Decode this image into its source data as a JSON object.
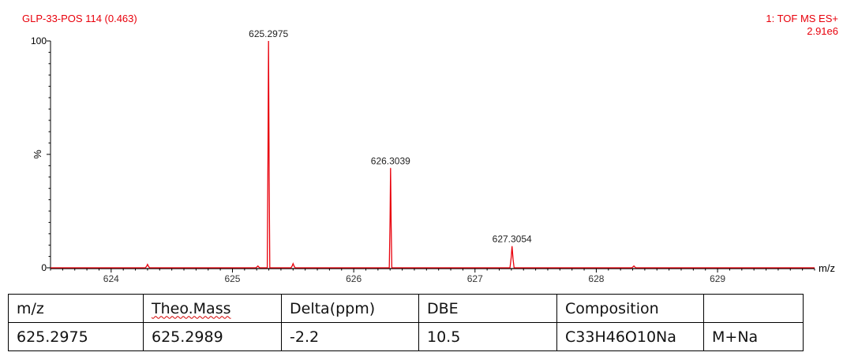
{
  "spectrum": {
    "sample_label": "GLP-33-POS 114 (0.463)",
    "instrument_label": "1: TOF MS ES+",
    "intensity_label": "2.91e6"
  },
  "chart_data": {
    "type": "line",
    "xlabel": "m/z",
    "ylabel": "%",
    "xlim": [
      623.5,
      629.8
    ],
    "ylim": [
      0,
      100
    ],
    "x_ticks": [
      624,
      625,
      626,
      627,
      628,
      629
    ],
    "y_ticks": [
      0,
      100
    ],
    "color": "#e8000b",
    "peaks": [
      {
        "mz": 624.3,
        "intensity": 1.5,
        "label": ""
      },
      {
        "mz": 625.21,
        "intensity": 0.8,
        "label": ""
      },
      {
        "mz": 625.2975,
        "intensity": 100,
        "label": "625.2975"
      },
      {
        "mz": 625.5,
        "intensity": 1.8,
        "label": ""
      },
      {
        "mz": 626.3039,
        "intensity": 44,
        "label": "626.3039"
      },
      {
        "mz": 627.3054,
        "intensity": 9.5,
        "label": "627.3054"
      },
      {
        "mz": 628.31,
        "intensity": 0.8,
        "label": ""
      }
    ]
  },
  "table": {
    "header": [
      "m/z",
      "Theo.Mass",
      "Delta(ppm)",
      "DBE",
      "Composition",
      ""
    ],
    "row": [
      "625.2975",
      "625.2989",
      "-2.2",
      "10.5",
      "C33H46O10Na",
      "M+Na"
    ]
  }
}
